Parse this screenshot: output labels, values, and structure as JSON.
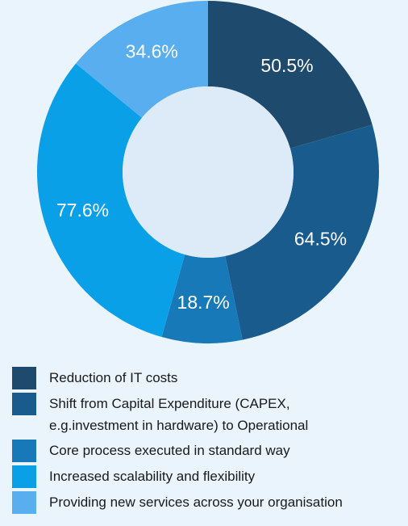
{
  "chart_data": {
    "type": "pie",
    "categories": [
      "Reduction of IT costs",
      "Shift from Capital Expenditure (CAPEX, e.g.investment in hardware) to Operational",
      "Core process executed in standard way",
      "Increased scalability and flexibility",
      "Providing new services across your organisation"
    ],
    "values": [
      50.5,
      64.5,
      18.7,
      77.6,
      34.6
    ],
    "value_labels": [
      "50.5%",
      "64.5%",
      "18.7%",
      "77.6%",
      "34.6%"
    ],
    "colors": [
      "#1e4a6e",
      "#195b8d",
      "#1879b9",
      "#0aa0e8",
      "#58aeef"
    ],
    "donut": true
  }
}
